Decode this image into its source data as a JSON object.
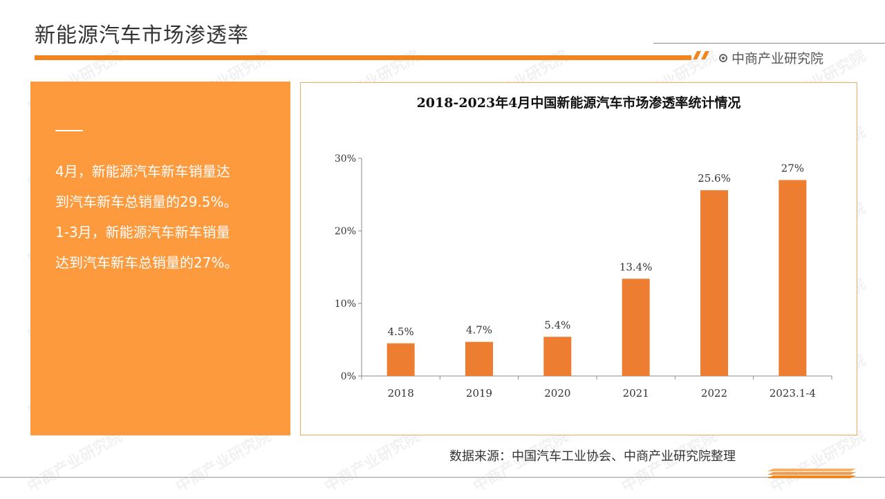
{
  "header": {
    "title": "新能源汽车市场渗透率",
    "brand": "中商产业研究院"
  },
  "panel": {
    "lines": [
      "4月，新能源汽车新车销量达",
      "到汽车新车总销量的29.5%。",
      "1-3月，新能源汽车新车销量",
      "达到汽车新车总销量的27%。"
    ]
  },
  "watermark": "中商产业研究院",
  "footer": {
    "source": "数据来源：中国汽车工业协会、中商产业研究院整理"
  },
  "colors": {
    "accent": "#f0861f",
    "panel": "#fd9a3d",
    "bar": "#ed7d31"
  },
  "chart_data": {
    "type": "bar",
    "title": "2018-2023年4月中国新能源汽车市场渗透率统计情况",
    "categories": [
      "2018",
      "2019",
      "2020",
      "2021",
      "2022",
      "2023.1-4"
    ],
    "values": [
      4.5,
      4.7,
      5.4,
      13.4,
      25.6,
      27
    ],
    "value_labels": [
      "4.5%",
      "4.7%",
      "5.4%",
      "13.4%",
      "25.6%",
      "27%"
    ],
    "yticks": [
      "0%",
      "10%",
      "20%",
      "30%"
    ],
    "ytick_values": [
      0,
      10,
      20,
      30
    ],
    "ylim": [
      0,
      30
    ],
    "grid": false,
    "legend": "none"
  }
}
